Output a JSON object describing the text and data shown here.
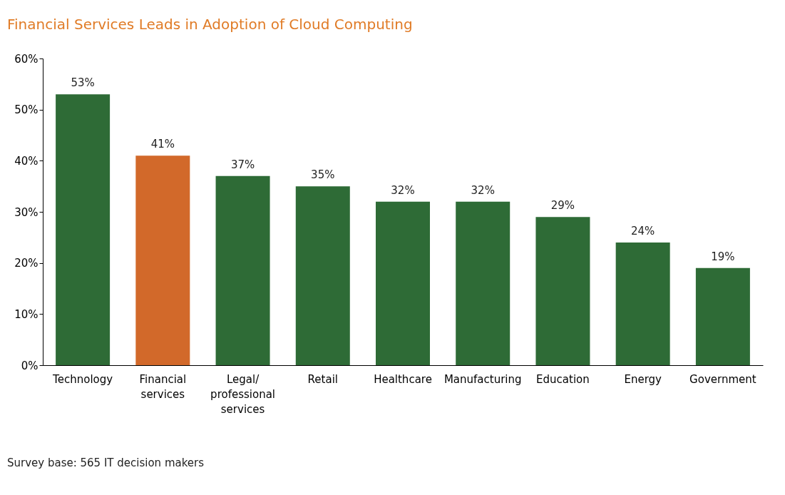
{
  "chart_data": {
    "type": "bar",
    "title": "Financial Services Leads in Adoption of Cloud Computing",
    "categories": [
      "Technology",
      "Financial\nservices",
      "Legal/\nprofessional\nservices",
      "Retail",
      "Healthcare",
      "Manufacturing",
      "Education",
      "Energy",
      "Government"
    ],
    "values": [
      53,
      41,
      37,
      35,
      32,
      32,
      29,
      24,
      19
    ],
    "colors": [
      "#2e6b36",
      "#d2692a",
      "#2e6b36",
      "#2e6b36",
      "#2e6b36",
      "#2e6b36",
      "#2e6b36",
      "#2e6b36",
      "#2e6b36"
    ],
    "value_labels": [
      "53%",
      "41%",
      "37%",
      "35%",
      "32%",
      "32%",
      "29%",
      "24%",
      "19%"
    ],
    "ylim": [
      0,
      60
    ],
    "yticks": [
      {
        "value": 0,
        "label": "0%"
      },
      {
        "value": 10,
        "label": "10%"
      },
      {
        "value": 20,
        "label": "20%"
      },
      {
        "value": 30,
        "label": "30%"
      },
      {
        "value": 40,
        "label": "40%"
      },
      {
        "value": 50,
        "label": "50%"
      },
      {
        "value": 60,
        "label": "60%"
      }
    ],
    "grid": false,
    "annotations": [
      "Survey base: 565 IT decision makers"
    ]
  }
}
